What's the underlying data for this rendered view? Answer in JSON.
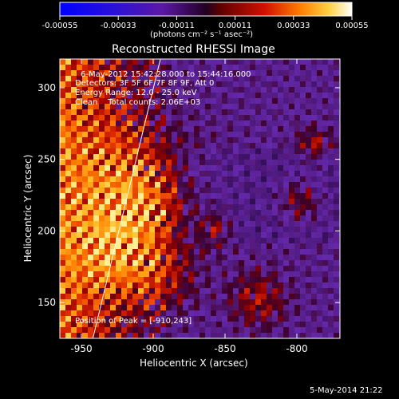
{
  "chart_data": {
    "type": "heatmap",
    "title": "Reconstructed RHESSI Image",
    "xlabel": "Heliocentric X (arcsec)",
    "ylabel": "Heliocentric Y (arcsec)",
    "xlim": [
      -965,
      -770
    ],
    "ylim": [
      125,
      320
    ],
    "xticks": [
      -950,
      -900,
      -850,
      -800
    ],
    "xtick_labels": [
      "-950",
      "-900",
      "-850",
      "-800"
    ],
    "yticks": [
      150,
      200,
      250,
      300
    ],
    "ytick_labels": [
      "150",
      "200",
      "250",
      "300"
    ],
    "colorbar": {
      "range": [
        -0.00055,
        0.00055
      ],
      "ticks": [
        -0.00055,
        -0.00033,
        -0.00011,
        0.00011,
        0.00033,
        0.00055
      ],
      "tick_labels": [
        "-0.00055",
        "-0.00033",
        "-0.00011",
        "0.00011",
        "0.00033",
        "0.00055"
      ],
      "units_label": "(photons cm⁻² s⁻¹ asec⁻²)"
    },
    "annotations": {
      "time": "6-May-2012 15:42:28.000 to 15:44:16.000",
      "detectors": "Detectors: 3F 5F 6F 7F 8F 9F, Att 0",
      "energy": "Energy Range: 12.0 - 25.0 keV",
      "clean": "Clean    Total counts: 2.06E+03",
      "peak": "Position of Peak = [-910,243]"
    },
    "limb_line": {
      "x": [
        -942,
        -895
      ],
      "y": [
        125,
        320
      ]
    },
    "colors": {
      "axes": "#ffffff",
      "background": "#000000"
    }
  },
  "footer": {
    "timestamp": "5-May-2014 21:22"
  }
}
